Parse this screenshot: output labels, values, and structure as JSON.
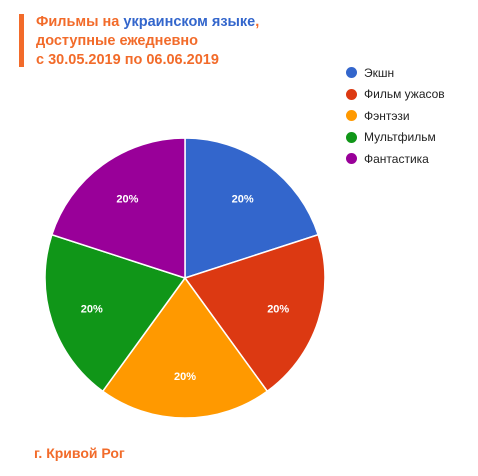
{
  "title": {
    "line1_pre": "Фильмы на ",
    "line1_hl": "украинском языке",
    "line1_post": ",",
    "line2": "доступные ежедневно",
    "line3": "с 30.05.2019 по 06.06.2019"
  },
  "footer": {
    "city": "г. Кривой Рог"
  },
  "chart_data": {
    "type": "pie",
    "categories": [
      "Экшн",
      "Фильм ужасов",
      "Фэнтэзи",
      "Мультфильм",
      "Фантастика"
    ],
    "values": [
      20,
      20,
      20,
      20,
      20
    ],
    "value_labels": [
      "20%",
      "20%",
      "20%",
      "20%",
      "20%"
    ],
    "colors": [
      "#3366cc",
      "#dc3912",
      "#ff9900",
      "#109618",
      "#990099"
    ],
    "legend_position": "right"
  }
}
